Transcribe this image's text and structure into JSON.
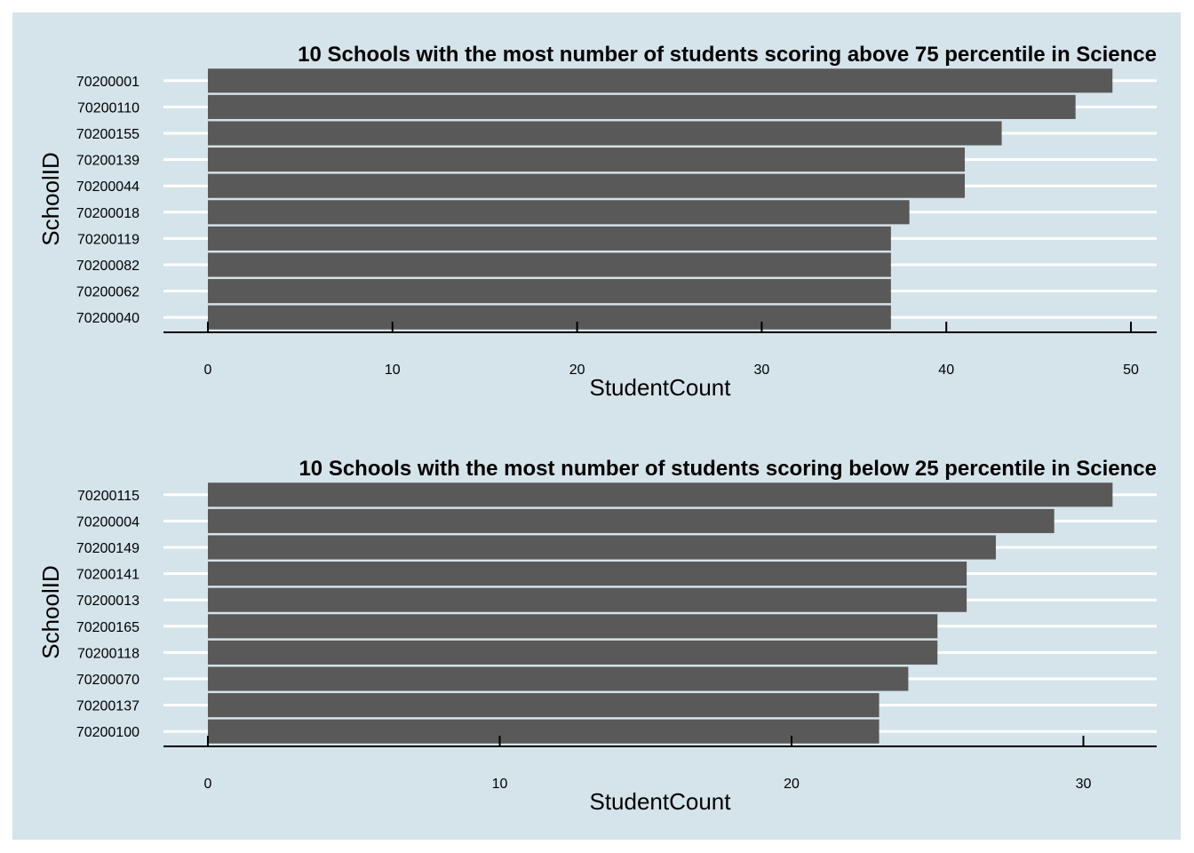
{
  "chart_data": [
    {
      "type": "bar",
      "orientation": "horizontal",
      "title": "10 Schools with the most number of students scoring above 75 percentile in Science",
      "xlabel": "StudentCount",
      "ylabel": "SchoolID",
      "categories": [
        "70200001",
        "70200110",
        "70200155",
        "70200139",
        "70200044",
        "70200018",
        "70200119",
        "70200082",
        "70200062",
        "70200040"
      ],
      "values": [
        49,
        47,
        43,
        41,
        41,
        38,
        37,
        37,
        37,
        37
      ],
      "xticks": [
        0,
        10,
        20,
        30,
        40,
        50
      ],
      "xlim": [
        0,
        51
      ],
      "bar_color": "#595959",
      "grid": "horizontal major lines, white",
      "background": "#d5e3ea"
    },
    {
      "type": "bar",
      "orientation": "horizontal",
      "title": "10 Schools with the most number of students scoring below 25 percentile in Science",
      "xlabel": "StudentCount",
      "ylabel": "SchoolID",
      "categories": [
        "70200115",
        "70200004",
        "70200149",
        "70200141",
        "70200013",
        "70200165",
        "70200118",
        "70200070",
        "70200137",
        "70200100"
      ],
      "values": [
        31,
        29,
        27,
        26,
        26,
        25,
        25,
        24,
        23,
        23
      ],
      "xticks": [
        0,
        10,
        20,
        30
      ],
      "xlim": [
        0,
        32
      ],
      "bar_color": "#595959",
      "grid": "horizontal major lines, white",
      "background": "#d5e3ea"
    }
  ]
}
